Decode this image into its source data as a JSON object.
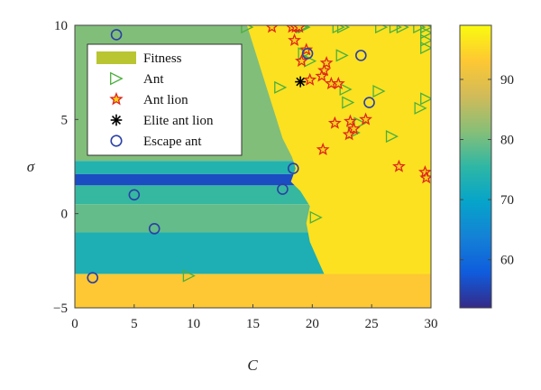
{
  "chart_data": {
    "type": "scatter",
    "title": "",
    "xlabel": "C",
    "ylabel": "σ",
    "xlim": [
      0,
      30
    ],
    "ylim": [
      -5,
      10
    ],
    "xticks": [
      "0",
      "5",
      "10",
      "15",
      "20",
      "25",
      "30"
    ],
    "yticks": [
      "−5",
      "0",
      "5",
      "10"
    ],
    "colorbar": {
      "range": [
        52,
        99
      ],
      "ticks": [
        "60",
        "70",
        "80",
        "90"
      ],
      "colors": [
        "#352a87",
        "#0f5cdd",
        "#1481d6",
        "#06a4ca",
        "#2eb7a4",
        "#87bf77",
        "#d1bb59",
        "#fec832",
        "#f9fb0e"
      ]
    },
    "legend": {
      "position": "top-left",
      "items": [
        {
          "name": "Fitness",
          "marker": "patch",
          "color": "#b9c531"
        },
        {
          "name": "Ant",
          "marker": "triangle-right",
          "color": "#4caf3e"
        },
        {
          "name": "Ant lion",
          "marker": "star",
          "color": "#e0251b"
        },
        {
          "name": "Elite ant lion",
          "marker": "asterisk",
          "color": "#000000"
        },
        {
          "name": "Escape ant",
          "marker": "circle",
          "color": "#2b3fa5"
        }
      ]
    },
    "surface": {
      "bands": [
        {
          "y_top": 10,
          "y_bottom": 2.8,
          "fitness": 81
        },
        {
          "y_top": 2.8,
          "y_bottom": 2.1,
          "fitness": 74
        },
        {
          "y_top": 2.1,
          "y_bottom": 1.5,
          "fitness": 56
        },
        {
          "y_top": 1.5,
          "y_bottom": 0.5,
          "fitness": 76
        },
        {
          "y_top": 0.5,
          "y_bottom": -1.0,
          "fitness": 79
        },
        {
          "y_top": -1.0,
          "y_bottom": -3.2,
          "fitness": 73
        },
        {
          "y_top": -3.2,
          "y_bottom": -5,
          "fitness": 93
        }
      ],
      "boundary": [
        [
          14.5,
          10
        ],
        [
          15.5,
          8
        ],
        [
          16.5,
          6
        ],
        [
          17.5,
          4
        ],
        [
          18.3,
          3
        ],
        [
          18.6,
          2.4
        ],
        [
          18.2,
          1.7
        ],
        [
          19.0,
          1.2
        ],
        [
          19.8,
          0.4
        ],
        [
          19.5,
          -0.5
        ],
        [
          19.8,
          -1.5
        ],
        [
          20.5,
          -2.5
        ],
        [
          21.0,
          -3.2
        ],
        [
          30,
          -3.2
        ],
        [
          30,
          10
        ]
      ],
      "right_fitness": 96
    },
    "series": [
      {
        "name": "Ant",
        "marker": "triangle-right",
        "points": [
          [
            14.5,
            9.9
          ],
          [
            19.1,
            9.9
          ],
          [
            19.3,
            9.9
          ],
          [
            22.2,
            9.9
          ],
          [
            22.6,
            9.9
          ],
          [
            25.8,
            9.9
          ],
          [
            27.0,
            9.9
          ],
          [
            27.6,
            9.9
          ],
          [
            29.0,
            9.9
          ],
          [
            29.6,
            9.9
          ],
          [
            29.6,
            9.6
          ],
          [
            29.6,
            9.2
          ],
          [
            29.6,
            8.8
          ],
          [
            19.3,
            8.5
          ],
          [
            22.5,
            8.4
          ],
          [
            19.8,
            8.1
          ],
          [
            17.3,
            6.7
          ],
          [
            22.8,
            6.6
          ],
          [
            25.6,
            6.5
          ],
          [
            29.6,
            6.1
          ],
          [
            23.0,
            5.9
          ],
          [
            29.1,
            5.6
          ],
          [
            24.0,
            4.8
          ],
          [
            23.5,
            4.3
          ],
          [
            26.7,
            4.1
          ],
          [
            20.3,
            -0.2
          ],
          [
            9.6,
            -3.3
          ]
        ]
      },
      {
        "name": "Ant lion",
        "marker": "star",
        "points": [
          [
            16.6,
            9.9
          ],
          [
            18.3,
            9.9
          ],
          [
            18.6,
            9.9
          ],
          [
            18.9,
            9.9
          ],
          [
            18.5,
            9.2
          ],
          [
            19.5,
            8.7
          ],
          [
            19.1,
            8.1
          ],
          [
            21.2,
            8.0
          ],
          [
            21.0,
            7.6
          ],
          [
            20.8,
            7.3
          ],
          [
            19.8,
            7.1
          ],
          [
            21.6,
            6.9
          ],
          [
            22.2,
            6.9
          ],
          [
            21.9,
            4.8
          ],
          [
            23.2,
            4.9
          ],
          [
            24.5,
            5.0
          ],
          [
            23.5,
            4.5
          ],
          [
            23.1,
            4.2
          ],
          [
            20.9,
            3.4
          ],
          [
            27.3,
            2.5
          ],
          [
            29.5,
            2.2
          ],
          [
            29.6,
            1.9
          ]
        ]
      },
      {
        "name": "Elite ant lion",
        "marker": "asterisk",
        "points": [
          [
            19.0,
            7.0
          ]
        ]
      },
      {
        "name": "Escape ant",
        "marker": "circle",
        "points": [
          [
            3.5,
            9.5
          ],
          [
            19.6,
            8.5
          ],
          [
            24.1,
            8.4
          ],
          [
            24.8,
            5.9
          ],
          [
            18.4,
            2.4
          ],
          [
            17.5,
            1.3
          ],
          [
            5.0,
            1.0
          ],
          [
            6.7,
            -0.8
          ],
          [
            1.5,
            -3.4
          ]
        ]
      }
    ]
  }
}
